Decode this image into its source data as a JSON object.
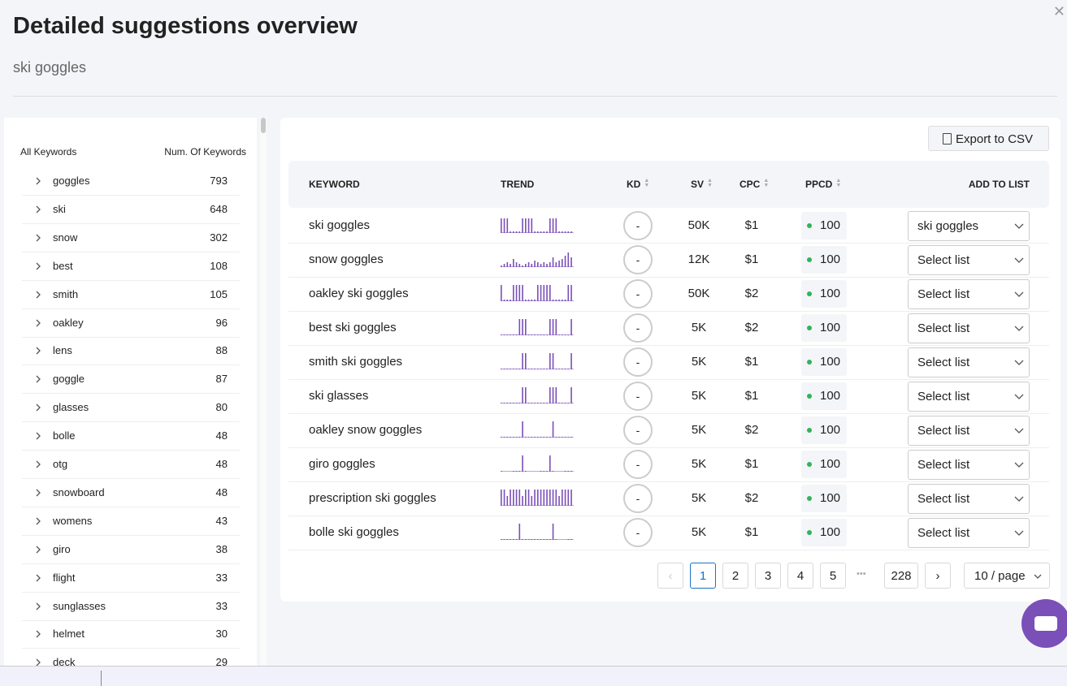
{
  "header": {
    "title": "Detailed suggestions overview",
    "subtitle": "ski goggles"
  },
  "sidebar": {
    "headers": [
      "All Keywords",
      "Num. Of Keywords"
    ],
    "rows": [
      {
        "label": "goggles",
        "count": "793"
      },
      {
        "label": "ski",
        "count": "648"
      },
      {
        "label": "snow",
        "count": "302"
      },
      {
        "label": "best",
        "count": "108"
      },
      {
        "label": "smith",
        "count": "105"
      },
      {
        "label": "oakley",
        "count": "96"
      },
      {
        "label": "lens",
        "count": "88"
      },
      {
        "label": "goggle",
        "count": "87"
      },
      {
        "label": "glasses",
        "count": "80"
      },
      {
        "label": "bolle",
        "count": "48"
      },
      {
        "label": "otg",
        "count": "48"
      },
      {
        "label": "snowboard",
        "count": "48"
      },
      {
        "label": "womens",
        "count": "43"
      },
      {
        "label": "giro",
        "count": "38"
      },
      {
        "label": "flight",
        "count": "33"
      },
      {
        "label": "sunglasses",
        "count": "33"
      },
      {
        "label": "helmet",
        "count": "30"
      },
      {
        "label": "deck",
        "count": "29"
      }
    ]
  },
  "table": {
    "export": "Export to CSV",
    "columns": [
      "KEYWORD",
      "TREND",
      "KD",
      "SV",
      "CPC",
      "PPCD",
      "ADD TO LIST"
    ],
    "rows": [
      {
        "keyword": "ski goggles",
        "trend": [
          90,
          90,
          90,
          10,
          10,
          10,
          10,
          90,
          90,
          90,
          90,
          10,
          10,
          10,
          10,
          10,
          90,
          90,
          90,
          10,
          10,
          10,
          10,
          10
        ],
        "kd": "-",
        "sv": "50K",
        "cpc": "$1",
        "ppcd": "100",
        "list": "ski goggles"
      },
      {
        "keyword": "snow goggles",
        "trend": [
          10,
          20,
          30,
          20,
          50,
          30,
          20,
          10,
          20,
          30,
          20,
          40,
          30,
          20,
          30,
          20,
          30,
          60,
          30,
          40,
          50,
          70,
          90,
          60
        ],
        "kd": "-",
        "sv": "12K",
        "cpc": "$1",
        "ppcd": "100",
        "list": "Select list"
      },
      {
        "keyword": "oakley ski goggles",
        "trend": [
          100,
          10,
          10,
          10,
          100,
          100,
          100,
          100,
          10,
          10,
          10,
          10,
          100,
          100,
          100,
          100,
          100,
          10,
          10,
          10,
          10,
          10,
          100,
          100
        ],
        "kd": "-",
        "sv": "50K",
        "cpc": "$2",
        "ppcd": "100",
        "list": "Select list"
      },
      {
        "keyword": "best ski goggles",
        "trend": [
          5,
          5,
          5,
          5,
          5,
          5,
          100,
          100,
          100,
          5,
          5,
          5,
          5,
          5,
          5,
          5,
          100,
          100,
          100,
          5,
          5,
          5,
          5,
          100
        ],
        "kd": "-",
        "sv": "5K",
        "cpc": "$2",
        "ppcd": "100",
        "list": "Select list"
      },
      {
        "keyword": "smith ski goggles",
        "trend": [
          5,
          5,
          5,
          5,
          5,
          5,
          5,
          100,
          100,
          5,
          5,
          5,
          5,
          5,
          5,
          5,
          100,
          100,
          5,
          5,
          5,
          5,
          5,
          100
        ],
        "kd": "-",
        "sv": "5K",
        "cpc": "$1",
        "ppcd": "100",
        "list": "Select list"
      },
      {
        "keyword": "ski glasses",
        "trend": [
          5,
          5,
          5,
          5,
          5,
          5,
          5,
          100,
          100,
          5,
          5,
          5,
          5,
          5,
          5,
          5,
          100,
          100,
          100,
          5,
          5,
          5,
          5,
          100
        ],
        "kd": "-",
        "sv": "5K",
        "cpc": "$1",
        "ppcd": "100",
        "list": "Select list"
      },
      {
        "keyword": "oakley snow goggles",
        "trend": [
          5,
          5,
          5,
          5,
          5,
          5,
          5,
          100,
          5,
          5,
          5,
          5,
          5,
          5,
          5,
          5,
          5,
          100,
          5,
          5,
          5,
          5,
          5,
          5
        ],
        "kd": "-",
        "sv": "5K",
        "cpc": "$2",
        "ppcd": "100",
        "list": "Select list"
      },
      {
        "keyword": "giro goggles",
        "trend": [
          5,
          0,
          0,
          0,
          5,
          5,
          5,
          100,
          5,
          0,
          0,
          0,
          0,
          5,
          5,
          5,
          100,
          5,
          0,
          0,
          0,
          5,
          5,
          5
        ],
        "kd": "-",
        "sv": "5K",
        "cpc": "$1",
        "ppcd": "100",
        "list": "Select list"
      },
      {
        "keyword": "prescription ski goggles",
        "trend": [
          100,
          100,
          60,
          100,
          100,
          100,
          100,
          60,
          100,
          100,
          60,
          100,
          100,
          100,
          100,
          100,
          100,
          100,
          100,
          60,
          100,
          100,
          100,
          100
        ],
        "kd": "-",
        "sv": "5K",
        "cpc": "$2",
        "ppcd": "100",
        "list": "Select list"
      },
      {
        "keyword": "bolle ski goggles",
        "trend": [
          5,
          5,
          5,
          5,
          5,
          5,
          100,
          5,
          5,
          5,
          5,
          5,
          5,
          5,
          5,
          5,
          5,
          100,
          5,
          0,
          0,
          0,
          5,
          5
        ],
        "kd": "-",
        "sv": "5K",
        "cpc": "$1",
        "ppcd": "100",
        "list": "Select list"
      }
    ]
  },
  "pagination": {
    "pages": [
      "1",
      "2",
      "3",
      "4",
      "5",
      "228"
    ],
    "ellipsis": "•••",
    "page_size": "10 / page"
  }
}
